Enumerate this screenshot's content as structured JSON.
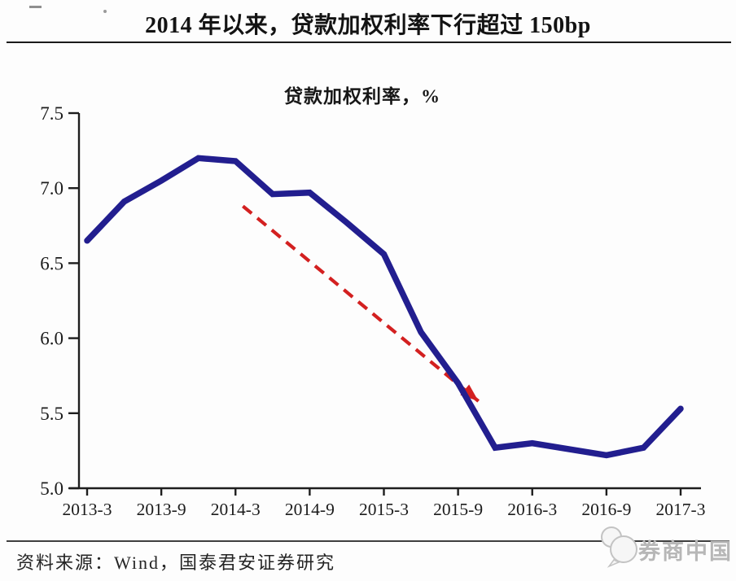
{
  "page": {
    "title": "2014 年以来，贷款加权利率下行超过 150bp"
  },
  "chart_data": {
    "type": "line",
    "title": "贷款加权利率，%",
    "categories": [
      "2013-3",
      "2013-6",
      "2013-9",
      "2013-12",
      "2014-3",
      "2014-6",
      "2014-9",
      "2014-12",
      "2015-3",
      "2015-6",
      "2015-9",
      "2015-12",
      "2016-3",
      "2016-6",
      "2016-9",
      "2016-12",
      "2017-3"
    ],
    "values": [
      6.65,
      6.91,
      7.05,
      7.2,
      7.18,
      6.96,
      6.97,
      6.77,
      6.56,
      6.04,
      5.7,
      5.27,
      5.3,
      5.26,
      5.22,
      5.27,
      5.53
    ],
    "x_tick_labels": [
      "2013-3",
      "2013-9",
      "2014-3",
      "2014-9",
      "2015-3",
      "2015-9",
      "2016-3",
      "2016-9",
      "2017-3"
    ],
    "x_label_every": 2,
    "y_ticks": [
      5.0,
      5.5,
      6.0,
      6.5,
      7.0,
      7.5
    ],
    "y_tick_labels": [
      "5.0",
      "5.5",
      "6.0",
      "6.5",
      "7.0",
      "7.5"
    ],
    "ylim": [
      5.0,
      7.5
    ],
    "grid": false,
    "legend": "none",
    "line_color": "#221e8f",
    "axis_color": "#1e1e1e",
    "annotation_arrow": {
      "from_index": 4.2,
      "from_value": 6.88,
      "to_index": 10.55,
      "to_value": 5.58,
      "color": "#d32020",
      "style": "dashed"
    }
  },
  "footer": {
    "source": "资料来源：Wind，国泰君安证券研究"
  },
  "watermark": {
    "label": "券商中国"
  }
}
